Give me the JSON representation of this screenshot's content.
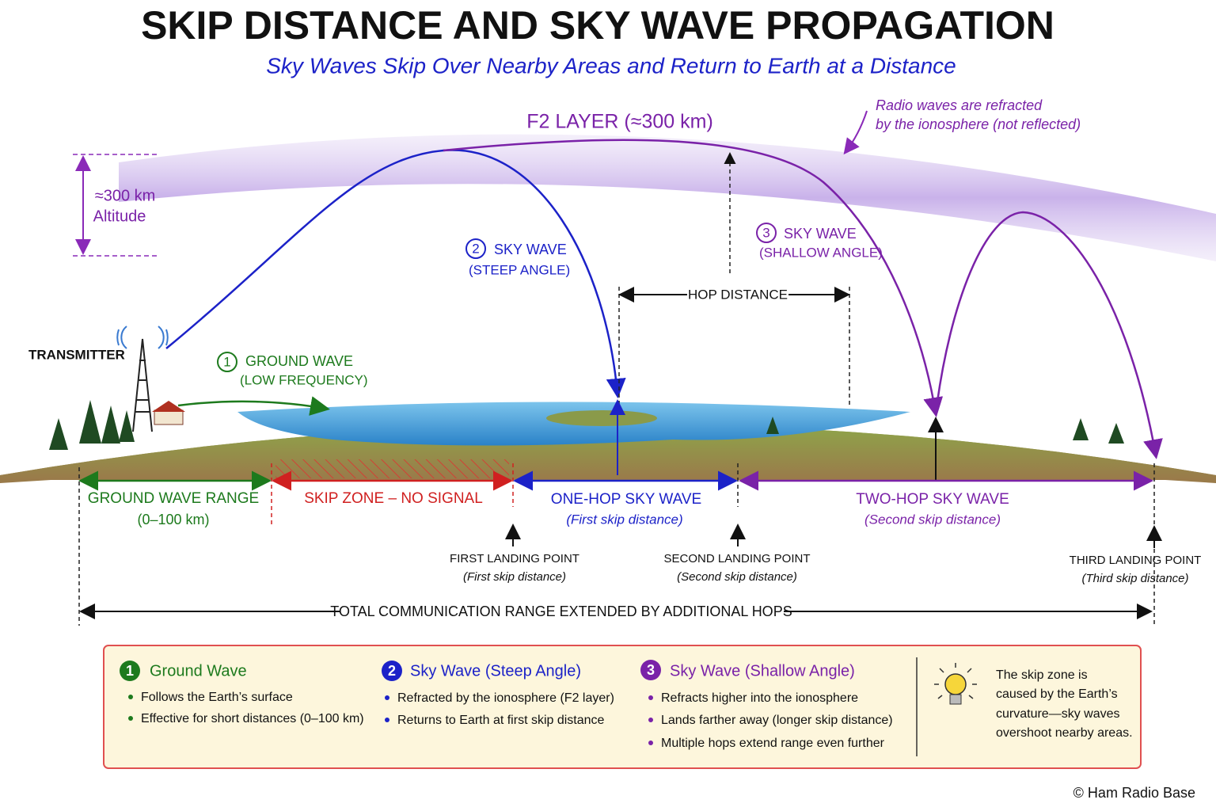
{
  "header": {
    "title": "SKIP DISTANCE AND SKY WAVE PROPAGATION",
    "subtitle": "Sky Waves Skip Over Nearby Areas and Return to Earth at a Distance"
  },
  "diagram": {
    "layer_label": "F2 LAYER (≈300 km)",
    "refraction_note": [
      "Radio waves are refracted",
      "by the ionosphere (not reflected)"
    ],
    "altitude": [
      "≈300 km",
      "Altitude"
    ],
    "transmitter": "TRANSMITTER",
    "waves": [
      {
        "number": "1",
        "label": "GROUND WAVE",
        "detail": "(LOW FREQUENCY)"
      },
      {
        "number": "2",
        "label": "SKY WAVE",
        "detail": "(STEEP ANGLE)"
      },
      {
        "number": "3",
        "label": "SKY WAVE",
        "detail": "(SHALLOW ANGLE)"
      }
    ],
    "hop_distance": "HOP DISTANCE",
    "ranges": [
      {
        "label": "GROUND WAVE RANGE",
        "detail": "(0–100 km)"
      },
      {
        "label": "SKIP ZONE – NO SIGNAL"
      },
      {
        "label": "ONE-HOP SKY WAVE",
        "detail": "(First skip distance)"
      },
      {
        "label": "TWO-HOP SKY WAVE",
        "detail": "(Second skip distance)"
      }
    ],
    "landing_points": [
      {
        "label": "FIRST LANDING POINT",
        "detail": "(First skip distance)"
      },
      {
        "label": "SECOND LANDING POINT",
        "detail": "(Second skip distance)"
      },
      {
        "label": "THIRD LANDING POINT",
        "detail": "(Third skip distance)"
      }
    ],
    "total_range": "TOTAL COMMUNICATION RANGE EXTENDED BY ADDITIONAL HOPS"
  },
  "legend": {
    "items": [
      {
        "number": "1",
        "title": "Ground Wave",
        "bullets": [
          "Follows the Earth’s surface",
          "Effective for short distances (0–100 km)"
        ]
      },
      {
        "number": "2",
        "title": "Sky Wave (Steep Angle)",
        "bullets": [
          "Refracted by the ionosphere (F2 layer)",
          "Returns to Earth at first skip distance"
        ]
      },
      {
        "number": "3",
        "title": "Sky Wave (Shallow Angle)",
        "bullets": [
          "Refracts higher into the ionosphere",
          "Lands farther away (longer skip distance)",
          "Multiple hops extend range even further"
        ]
      }
    ],
    "tip": [
      "The skip zone is",
      "caused by the Earth’s",
      "curvature—sky waves",
      "overshoot nearby areas."
    ]
  },
  "footer": {
    "copyright": "© Ham Radio Base"
  }
}
